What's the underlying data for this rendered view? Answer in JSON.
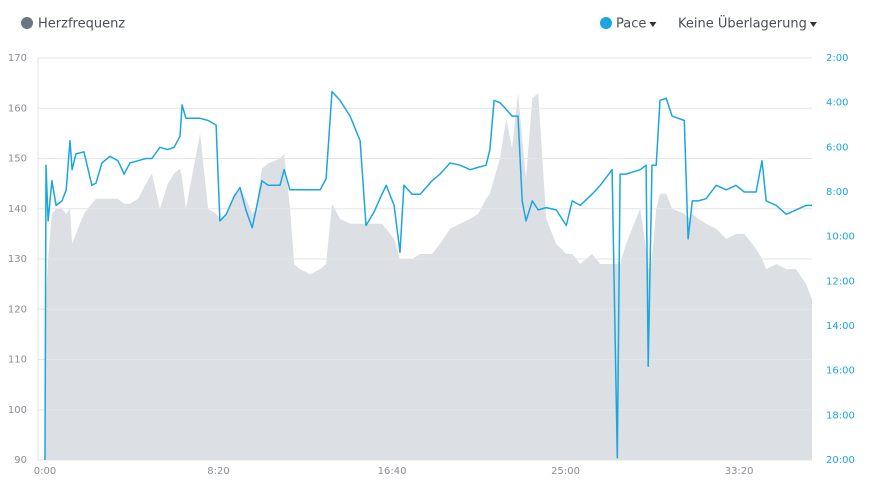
{
  "chart_data": {
    "type": "line",
    "overlay": "Keine Überlagerung",
    "x": [
      0,
      3,
      9,
      20,
      32,
      49,
      61,
      72,
      78,
      89,
      112,
      135,
      147,
      164,
      187,
      210,
      228,
      245,
      268,
      291,
      308,
      331,
      354,
      372,
      389,
      395,
      406,
      447,
      470,
      493,
      504,
      522,
      545,
      562,
      579,
      597,
      608,
      625,
      643,
      677,
      689,
      706,
      718,
      735,
      764,
      793,
      810,
      827,
      850,
      879,
      908,
      925,
      948,
      971,
      983,
      1006,
      1023,
      1034,
      1058,
      1081,
      1115,
      1138,
      1167,
      1196,
      1225,
      1248,
      1271,
      1282,
      1294,
      1311,
      1329,
      1346,
      1363,
      1375,
      1386,
      1404,
      1421,
      1444,
      1473,
      1502,
      1519,
      1542,
      1576,
      1600,
      1634,
      1649,
      1657,
      1674,
      1715,
      1732,
      1738,
      1749,
      1761,
      1772,
      1790,
      1807,
      1842,
      1853,
      1865,
      1882,
      1905,
      1934,
      1963,
      1991,
      2015,
      2049,
      2066,
      2078,
      2107,
      2136,
      2164,
      2193,
      2210
    ],
    "xlim": [
      0,
      2210
    ],
    "xticks": [
      {
        "value": 0,
        "label": "0:00"
      },
      {
        "value": 500,
        "label": "8:20"
      },
      {
        "value": 1000,
        "label": "16:40"
      },
      {
        "value": 1500,
        "label": "25:00"
      },
      {
        "value": 2000,
        "label": "33:20"
      }
    ],
    "ylim": [
      90,
      170
    ],
    "yticks": [
      90,
      100,
      110,
      120,
      130,
      140,
      150,
      160,
      170
    ],
    "y2lim": [
      20,
      2
    ],
    "y2ticks": [
      {
        "value": 2,
        "label": "2:00"
      },
      {
        "value": 4,
        "label": "4:00"
      },
      {
        "value": 6,
        "label": "6:00"
      },
      {
        "value": 8,
        "label": "8:00"
      },
      {
        "value": 10,
        "label": "10:00"
      },
      {
        "value": 12,
        "label": "12:00"
      },
      {
        "value": 14,
        "label": "14:00"
      },
      {
        "value": 16,
        "label": "16:00"
      },
      {
        "value": 18,
        "label": "18:00"
      },
      {
        "value": 20,
        "label": "20:00"
      }
    ],
    "grid": true,
    "series": [
      {
        "name": "Herzfrequenz",
        "type": "area",
        "color": "#dcdfe3",
        "marker_color": "#6b7683",
        "values": [
          90,
          122,
          130,
          139,
          140,
          140,
          139,
          140,
          133,
          135,
          139,
          141,
          142,
          142,
          142,
          142,
          141,
          141,
          142,
          145,
          147,
          140,
          145,
          147,
          148,
          146,
          140,
          155,
          140,
          139,
          138,
          139,
          143,
          144,
          142,
          139,
          140,
          148,
          149,
          150,
          151,
          140,
          129,
          128,
          127,
          128,
          129,
          141,
          138,
          137,
          137,
          137,
          137,
          137,
          136,
          134,
          130,
          130,
          130,
          131,
          131,
          133,
          136,
          137,
          138,
          139,
          142,
          143,
          146,
          150,
          158,
          152,
          163,
          154,
          146,
          162,
          163,
          138,
          133,
          131,
          131,
          129,
          131,
          129,
          129,
          129,
          129,
          133,
          140,
          132,
          128,
          130,
          140,
          143,
          143,
          140,
          139,
          138,
          139,
          138,
          137,
          136,
          134,
          135,
          135,
          132,
          130,
          128,
          129,
          128,
          128,
          125,
          122
        ]
      },
      {
        "name": "Pace",
        "type": "line",
        "axis": "y2",
        "color": "#1ba6e0",
        "values": [
          20,
          6.8,
          9.3,
          7.5,
          8.6,
          8.4,
          7.9,
          5.7,
          7.0,
          6.3,
          6.2,
          7.7,
          7.6,
          6.7,
          6.4,
          6.6,
          7.2,
          6.7,
          6.6,
          6.5,
          6.5,
          6.0,
          6.1,
          6.0,
          5.5,
          4.1,
          4.7,
          4.7,
          4.8,
          5.0,
          9.3,
          9.0,
          8.2,
          7.8,
          8.8,
          9.6,
          8.8,
          7.5,
          7.7,
          7.7,
          7.0,
          7.9,
          7.9,
          7.9,
          7.9,
          7.9,
          7.4,
          3.5,
          3.9,
          4.6,
          5.7,
          9.5,
          8.9,
          8.1,
          7.7,
          8.6,
          10.7,
          7.7,
          8.1,
          8.1,
          7.5,
          7.2,
          6.7,
          6.8,
          7.0,
          6.9,
          6.8,
          6.1,
          3.9,
          4.0,
          4.3,
          4.6,
          4.6,
          8.4,
          9.3,
          8.4,
          8.8,
          8.7,
          8.8,
          9.5,
          8.4,
          8.6,
          8.1,
          7.7,
          7.0,
          19.9,
          7.2,
          7.2,
          7.0,
          6.8,
          15.8,
          6.8,
          6.8,
          3.9,
          3.8,
          4.6,
          4.8,
          10.1,
          8.4,
          8.4,
          8.3,
          7.7,
          7.9,
          7.7,
          8.0,
          8.0,
          6.6,
          8.4,
          8.6,
          9.0,
          8.8,
          8.6,
          8.6
        ]
      }
    ]
  }
}
